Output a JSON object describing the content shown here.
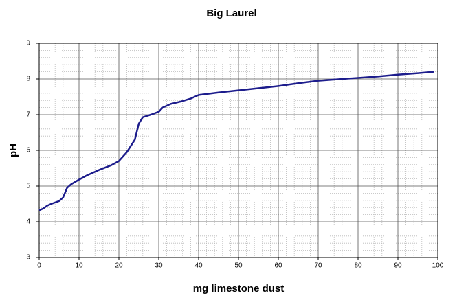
{
  "chart_data": {
    "type": "line",
    "title": "Big Laurel",
    "x_label": "mg limestone dust",
    "y_label": "pH",
    "x": [
      0,
      1,
      2,
      3,
      5,
      6,
      7,
      8,
      10,
      12,
      15,
      18,
      20,
      22,
      24,
      25,
      26,
      28,
      30,
      31,
      33,
      36,
      38,
      40,
      45,
      50,
      55,
      60,
      65,
      70,
      75,
      80,
      85,
      90,
      95,
      99
    ],
    "series": [
      {
        "name": "pH",
        "color": "#1c1c8c",
        "values": [
          4.32,
          4.37,
          4.45,
          4.5,
          4.58,
          4.68,
          4.95,
          5.05,
          5.18,
          5.3,
          5.45,
          5.58,
          5.7,
          5.95,
          6.3,
          6.75,
          6.93,
          7.0,
          7.08,
          7.2,
          7.3,
          7.38,
          7.45,
          7.55,
          7.62,
          7.68,
          7.74,
          7.8,
          7.88,
          7.95,
          7.99,
          8.03,
          8.07,
          8.12,
          8.16,
          8.2
        ]
      }
    ],
    "xlim": [
      0,
      100
    ],
    "xticks": [
      0,
      10,
      20,
      30,
      40,
      50,
      60,
      70,
      80,
      90,
      100
    ],
    "ylim": [
      3,
      9
    ],
    "yticks": [
      3,
      4,
      5,
      6,
      7,
      8,
      9
    ],
    "grid": true,
    "minor_grid": true
  }
}
